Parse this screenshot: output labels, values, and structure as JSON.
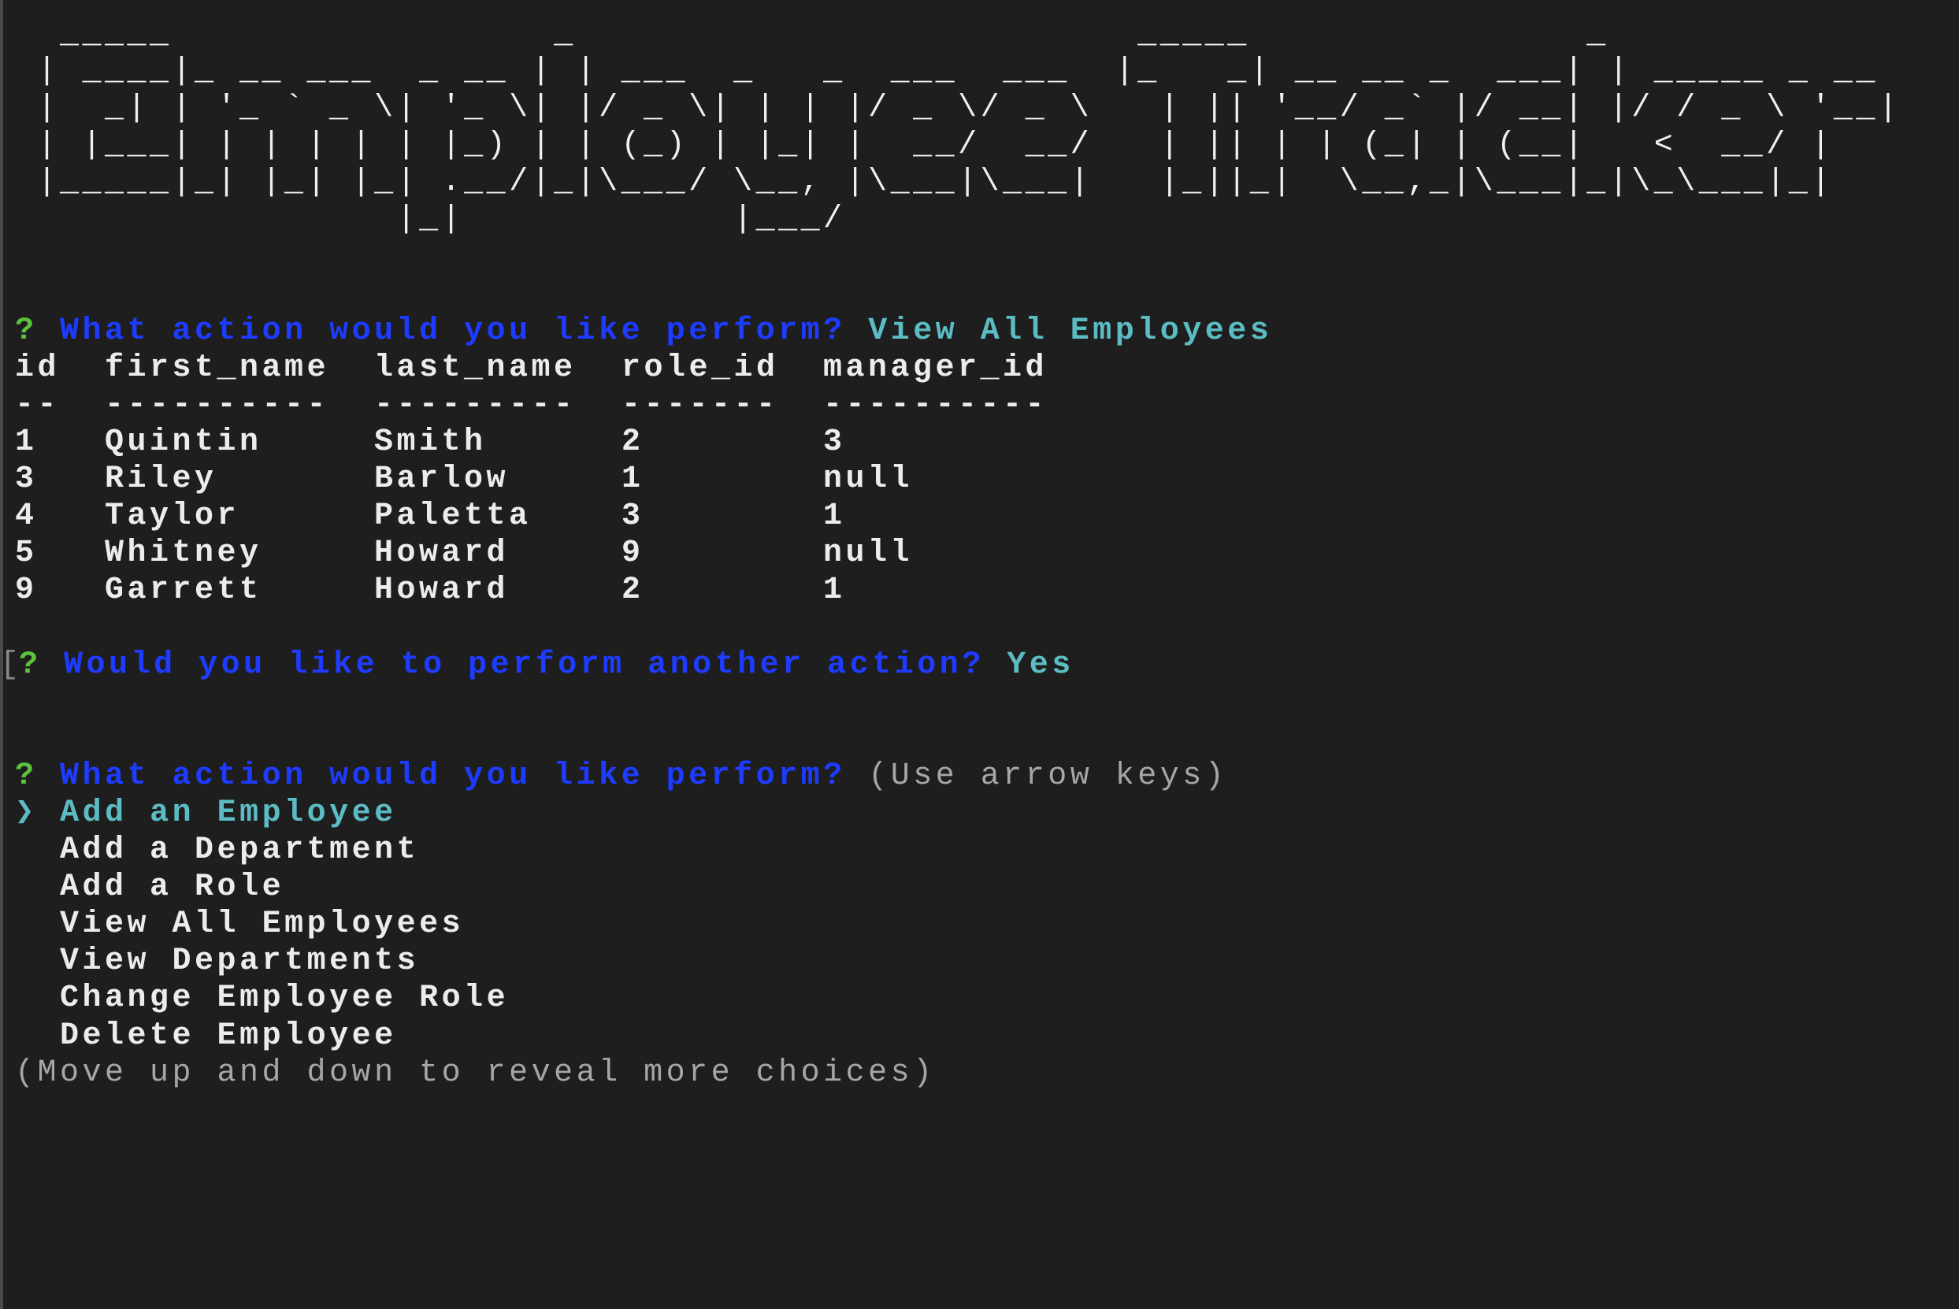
{
  "banner": [
    "  _____                 _                         _____               _",
    " | ____|_ __ ___  _ __ | | ___  _   _  ___  ___  |_   _| __ __ _  ___| | _____ _ __",
    " |  _| | '_ ` _ \\| '_ \\| |/ _ \\| | | |/ _ \\/ _ \\   | || '__/ _` |/ __| |/ / _ \\ '__|",
    " | |___| | | | | | |_) | | (_) | |_| |  __/  __/   | || | | (_| | (__|   <  __/ |",
    " |_____|_| |_| |_| .__/|_|\\___/ \\__, |\\___|\\___|   |_||_|  \\__,_|\\___|_|\\_\\___|_|",
    "                 |_|            |___/"
  ],
  "prompt1": {
    "mark": "?",
    "question": "What action would you like perform?",
    "answer": "View All Employees"
  },
  "table": {
    "headers": [
      "id",
      "first_name",
      "last_name",
      "role_id",
      "manager_id"
    ],
    "separators": [
      "--",
      "----------",
      "---------",
      "-------",
      "----------"
    ],
    "rows": [
      [
        "1",
        "Quintin",
        "Smith",
        "2",
        "3"
      ],
      [
        "3",
        "Riley",
        "Barlow",
        "1",
        "null"
      ],
      [
        "4",
        "Taylor",
        "Paletta",
        "3",
        "1"
      ],
      [
        "5",
        "Whitney",
        "Howard",
        "9",
        "null"
      ],
      [
        "9",
        "Garrett",
        "Howard",
        "2",
        "1"
      ]
    ]
  },
  "prompt2": {
    "bracket": "[",
    "mark": "?",
    "question": "Would you like to perform another action?",
    "answer": "Yes"
  },
  "prompt3": {
    "mark": "?",
    "question": "What action would you like perform?",
    "hint": "(Use arrow keys)"
  },
  "menu": {
    "pointer": "❯",
    "selected_index": 0,
    "items": [
      "Add an Employee",
      "Add a Department",
      "Add a Role",
      "View All Employees",
      "View Departments",
      "Change Employee Role",
      "Delete Employee"
    ],
    "footer": "(Move up and down to reveal more choices)"
  },
  "colors": {
    "background": "#1e1e1e",
    "prompt_mark": "#5cc43c",
    "question": "#1e3cff",
    "answer": "#5cbcc4",
    "hint": "#a6a6a6"
  }
}
